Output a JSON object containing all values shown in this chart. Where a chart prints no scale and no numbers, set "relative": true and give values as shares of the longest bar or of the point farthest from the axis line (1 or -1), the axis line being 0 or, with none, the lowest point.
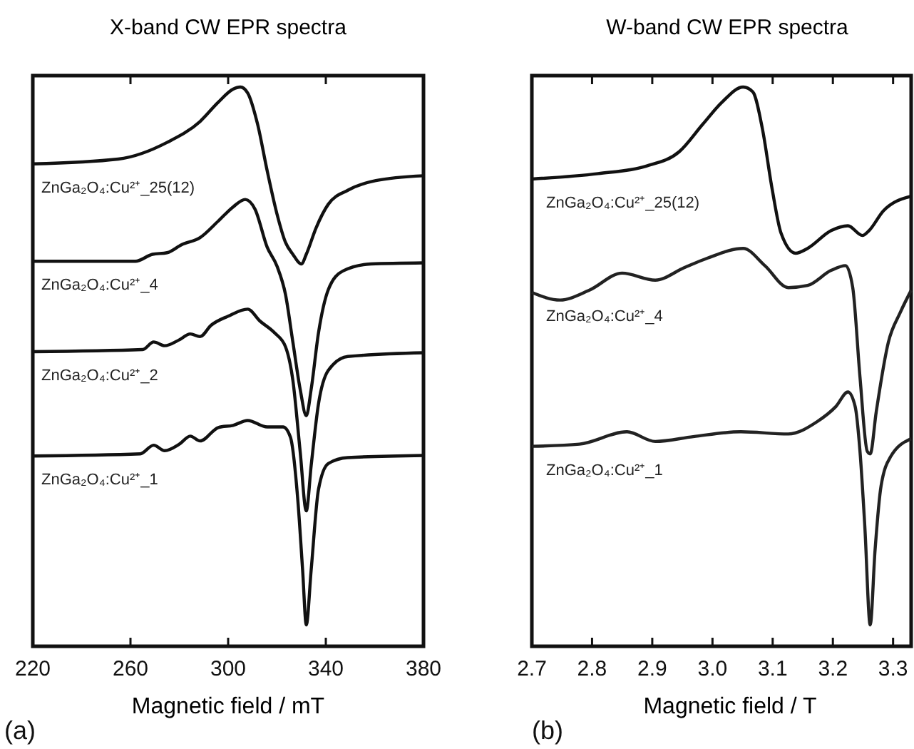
{
  "chart_data": [
    {
      "type": "line",
      "title": "X-band CW EPR spectra",
      "xlabel": "Magnetic field / mT",
      "relative": true,
      "xlim": [
        220,
        380
      ],
      "xticks": [
        220,
        260,
        300,
        340,
        380
      ],
      "grid": false,
      "marker": "none",
      "line_style": "solid",
      "annotations": [
        "(a)"
      ],
      "series": [
        {
          "name": "ZnGa₂O₄:Cu²⁺_25(12)",
          "color": "#111111",
          "x": [
            220,
            255,
            275,
            288.5,
            296,
            302,
            305,
            308,
            312,
            316,
            320,
            323.5,
            326.5,
            330,
            332,
            336,
            341,
            349,
            360.5,
            380
          ],
          "values": [
            0.857,
            0.866,
            0.897,
            0.936,
            0.972,
            0.996,
            1.0,
            0.989,
            0.932,
            0.844,
            0.764,
            0.711,
            0.689,
            0.671,
            0.689,
            0.738,
            0.782,
            0.808,
            0.826,
            0.835
          ]
        },
        {
          "name": "ZnGa₂O₄:Cu²⁺_4",
          "color": "#111111",
          "x": [
            220,
            262,
            269,
            275,
            281,
            288.5,
            296,
            302,
            307,
            311,
            316,
            320,
            323.5,
            326.5,
            329.5,
            332,
            334,
            337,
            341,
            347,
            358.5,
            380
          ],
          "values": [
            0.676,
            0.676,
            0.689,
            0.692,
            0.707,
            0.72,
            0.751,
            0.777,
            0.791,
            0.773,
            0.702,
            0.667,
            0.614,
            0.526,
            0.438,
            0.389,
            0.438,
            0.543,
            0.623,
            0.658,
            0.671,
            0.673
          ]
        },
        {
          "name": "ZnGa₂O₄:Cu²⁺_2",
          "color": "#111111",
          "x": [
            220,
            265,
            269.5,
            274,
            280,
            284.5,
            288.5,
            293,
            300,
            308,
            313,
            319,
            323.5,
            326.5,
            329.5,
            332,
            334,
            337,
            341,
            349,
            380
          ],
          "values": [
            0.508,
            0.512,
            0.526,
            0.519,
            0.53,
            0.541,
            0.536,
            0.557,
            0.574,
            0.587,
            0.565,
            0.543,
            0.517,
            0.455,
            0.322,
            0.212,
            0.296,
            0.411,
            0.473,
            0.499,
            0.506
          ]
        },
        {
          "name": "ZnGa₂O₄:Cu²⁺_1",
          "color": "#111111",
          "x": [
            220,
            264,
            269.5,
            274,
            280,
            284.5,
            288.5,
            296,
            302,
            308,
            316,
            322.5,
            325.5,
            328.5,
            330.5,
            332,
            334,
            337,
            341,
            349,
            380
          ],
          "values": [
            0.314,
            0.318,
            0.334,
            0.324,
            0.336,
            0.351,
            0.342,
            0.367,
            0.371,
            0.38,
            0.368,
            0.368,
            0.349,
            0.234,
            0.102,
            0,
            0.102,
            0.252,
            0.3,
            0.311,
            0.315
          ]
        }
      ]
    },
    {
      "type": "line",
      "title": "W-band CW EPR spectra",
      "xlabel": "Magnetic field / T",
      "relative": true,
      "xlim": [
        2.7,
        3.33
      ],
      "xticks": [
        {
          "value": 2.7,
          "label": "2.7"
        },
        {
          "value": 2.8,
          "label": "2.8"
        },
        {
          "value": 2.9,
          "label": "2.9"
        },
        {
          "value": 3.0,
          "label": "3.0"
        },
        {
          "value": 3.1,
          "label": "3.1"
        },
        {
          "value": 3.2,
          "label": "3.2"
        },
        {
          "value": 3.3,
          "label": "3.3"
        }
      ],
      "grid": false,
      "marker": "none",
      "line_style": "solid",
      "annotations": [
        "(b)"
      ],
      "series": [
        {
          "name": "ZnGa₂O₄:Cu²⁺_25(12)",
          "color": "#111111",
          "x": [
            2.7,
            2.81,
            2.89,
            2.945,
            2.984,
            3.016,
            3.051,
            3.067,
            3.083,
            3.099,
            3.114,
            3.138,
            3.158,
            3.197,
            3.225,
            3.249,
            3.26,
            3.284,
            3.33
          ],
          "values": [
            0.829,
            0.839,
            0.853,
            0.88,
            0.931,
            0.972,
            1.0,
            0.991,
            0.922,
            0.811,
            0.728,
            0.691,
            0.7,
            0.733,
            0.742,
            0.724,
            0.733,
            0.77,
            0.797
          ]
        },
        {
          "name": "ZnGa₂O₄:Cu²⁺_4",
          "color": "#222222",
          "x": [
            2.7,
            2.747,
            2.795,
            2.85,
            2.905,
            2.953,
            2.992,
            3.051,
            3.087,
            3.126,
            3.158,
            3.197,
            3.221,
            3.233,
            3.245,
            3.257,
            3.262,
            3.272,
            3.292,
            3.312,
            3.33
          ],
          "values": [
            0.618,
            0.604,
            0.622,
            0.654,
            0.641,
            0.664,
            0.682,
            0.7,
            0.668,
            0.627,
            0.631,
            0.659,
            0.668,
            0.627,
            0.461,
            0.323,
            0.318,
            0.396,
            0.525,
            0.581,
            0.622
          ]
        },
        {
          "name": "ZnGa₂O₄:Cu²⁺_1",
          "color": "#222222",
          "x": [
            2.7,
            2.779,
            2.858,
            2.905,
            2.968,
            3.047,
            3.126,
            3.174,
            3.205,
            3.225,
            3.237,
            3.245,
            3.253,
            3.262,
            3.27,
            3.28,
            3.296,
            3.33
          ],
          "values": [
            0.332,
            0.336,
            0.359,
            0.341,
            0.35,
            0.359,
            0.355,
            0.378,
            0.406,
            0.433,
            0.406,
            0.323,
            0.184,
            0,
            0.138,
            0.258,
            0.313,
            0.346
          ]
        }
      ]
    }
  ]
}
